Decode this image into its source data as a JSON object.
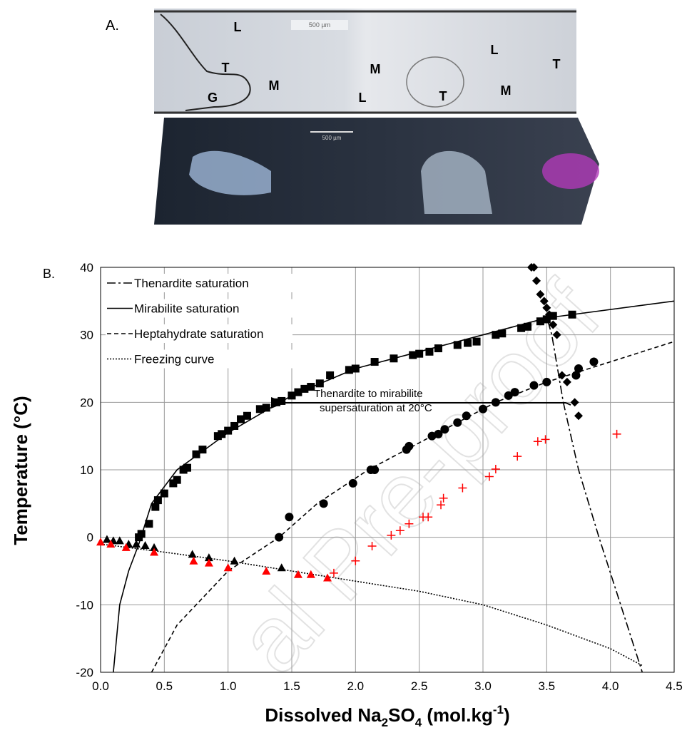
{
  "panel_a": {
    "label": "A.",
    "top_image": {
      "scale_bar": "500 µm",
      "labels": [
        "L",
        "L",
        "T",
        "M",
        "G",
        "M",
        "L",
        "T",
        "M",
        "T"
      ]
    },
    "bottom_image": {
      "scale_bar": "500 µm"
    }
  },
  "panel_b_label": "B.",
  "watermark": "al Pre-proof",
  "chart_data": {
    "type": "scatter",
    "y_label": "Temperature (°C)",
    "x_label": [
      "Dissolved Na",
      "2",
      "SO",
      "4",
      " (mol.kg",
      "-1",
      ")"
    ],
    "xlim": [
      0,
      4.5
    ],
    "ylim": [
      -20,
      40
    ],
    "xticks": [
      {
        "value": 0,
        "label": "0.0"
      },
      0.5,
      {
        "value": 1,
        "label": "1.0"
      },
      1.5,
      {
        "value": 2,
        "label": "2.0"
      },
      2.5,
      {
        "value": 3,
        "label": "3.0"
      },
      3.5,
      {
        "value": 4,
        "label": "4.0"
      },
      4.5
    ],
    "yticks": [
      -20,
      -10,
      0,
      10,
      20,
      30,
      40
    ],
    "grid": true,
    "annotation": [
      "Thenardite to mirabilite",
      "supersaturation at 20°C"
    ],
    "series": [
      {
        "name": "Thenardite saturation",
        "color": "#000",
        "style": "dash-dot",
        "x": [
          3.51,
          3.54,
          3.63,
          3.75,
          3.91,
          4.08,
          4.25
        ],
        "values": [
          32,
          30,
          20,
          10,
          0,
          -10,
          -20
        ]
      },
      {
        "name": "Mirabilite saturation",
        "color": "#000",
        "style": "solid",
        "x": [
          0.1,
          0.15,
          0.22,
          0.3,
          0.4,
          0.6,
          1.0,
          1.5,
          2.0,
          2.5,
          3.0,
          3.5,
          4.5
        ],
        "values": [
          -20,
          -10,
          -5,
          -1,
          5,
          10,
          15.5,
          21,
          25,
          27.5,
          30,
          32.5,
          35
        ]
      },
      {
        "name": "Heptahydrate saturation",
        "color": "#000",
        "style": "dashed",
        "x": [
          0.4,
          0.6,
          0.75,
          1.0,
          1.4,
          1.7,
          2.1,
          2.6,
          3.1,
          3.5,
          4.0,
          4.5
        ],
        "values": [
          -20,
          -13,
          -10,
          -5,
          0,
          5,
          10,
          15,
          20,
          23,
          26,
          29
        ]
      },
      {
        "name": "Freezing curve",
        "color": "#000",
        "style": "dotted",
        "x": [
          0,
          0.5,
          1.0,
          1.5,
          2.0,
          2.5,
          3.0,
          3.5,
          4.0,
          4.25
        ],
        "values": [
          -1,
          -2.2,
          -3.5,
          -5,
          -6.5,
          -8,
          -10,
          -13,
          -16.5,
          -19
        ]
      },
      {
        "color": "#000",
        "marker": "square",
        "x": [
          0.3,
          0.32,
          0.38,
          0.43,
          0.45,
          0.5,
          0.57,
          0.6,
          0.65,
          0.68,
          0.75,
          0.8,
          0.92,
          0.95,
          1.0,
          1.05,
          1.1,
          1.15,
          1.25,
          1.3,
          1.38,
          1.42,
          1.5,
          1.55,
          1.6,
          1.65,
          1.72,
          1.8,
          1.95,
          2.0,
          2.15,
          2.3,
          2.45,
          2.5,
          2.58,
          2.65,
          2.8,
          2.88,
          2.95,
          3.1,
          3.15,
          3.3,
          3.35,
          3.45,
          3.5,
          3.55,
          3.7
        ],
        "values": [
          0,
          0.5,
          2,
          4.5,
          5.5,
          6.5,
          8,
          8.5,
          10,
          10.3,
          12.3,
          13,
          15,
          15.3,
          15.8,
          16.5,
          17.5,
          18,
          19,
          19.2,
          20,
          20.2,
          21,
          21.5,
          22,
          22.3,
          22.8,
          24,
          24.8,
          25,
          26,
          26.5,
          27,
          27.2,
          27.5,
          28,
          28.5,
          28.8,
          29,
          30,
          30.2,
          31,
          31.2,
          32,
          32.3,
          32.8,
          33
        ]
      },
      {
        "color": "#000",
        "marker": "diamond",
        "x": [
          3.38,
          3.4,
          3.42,
          3.45,
          3.48,
          3.5,
          3.52,
          3.55,
          3.58,
          3.62,
          3.66,
          3.72,
          3.75
        ],
        "values": [
          40,
          40,
          38,
          36,
          35,
          34,
          33,
          31.5,
          30,
          24,
          23,
          20,
          18
        ]
      },
      {
        "color": "#000",
        "marker": "circle",
        "x": [
          1.4,
          1.48,
          1.75,
          1.98,
          2.12,
          2.15,
          2.4,
          2.42,
          2.6,
          2.65,
          2.7,
          2.8,
          2.87,
          3.0,
          3.1,
          3.2,
          3.25,
          3.4,
          3.5,
          3.73,
          3.75,
          3.87
        ],
        "values": [
          0,
          3,
          5,
          8,
          10,
          10,
          13,
          13.5,
          15,
          15.3,
          16,
          17,
          18,
          19,
          20,
          21,
          21.5,
          22.5,
          23,
          24,
          25,
          26
        ]
      },
      {
        "color": "#000",
        "marker": "triangle",
        "x": [
          0.05,
          0.1,
          0.15,
          0.22,
          0.28,
          0.35,
          0.42,
          0.72,
          0.85,
          1.05,
          1.42
        ],
        "values": [
          -0.3,
          -0.5,
          -0.5,
          -1,
          -1,
          -1.2,
          -1.5,
          -2.5,
          -3,
          -3.5,
          -4.5
        ]
      },
      {
        "color": "#ff0000",
        "marker": "triangle",
        "x": [
          0.0,
          0.08,
          0.2,
          0.42,
          0.73,
          0.85,
          1.0,
          1.3,
          1.55,
          1.65,
          1.78
        ],
        "values": [
          -0.7,
          -1,
          -1.5,
          -2.2,
          -3.5,
          -3.8,
          -4.5,
          -5,
          -5.5,
          -5.5,
          -6
        ]
      },
      {
        "color": "#ff0000",
        "marker": "plus",
        "x": [
          1.83,
          2.0,
          2.13,
          2.28,
          2.35,
          2.42,
          2.53,
          2.57,
          2.67,
          2.69,
          2.84,
          3.05,
          3.1,
          3.27,
          3.43,
          3.49,
          4.05
        ],
        "values": [
          -5.3,
          -3.5,
          -1.3,
          0.3,
          1,
          2,
          3,
          3,
          4.8,
          5.8,
          7.3,
          9,
          10.1,
          12,
          14.2,
          14.5,
          15.3
        ]
      }
    ]
  }
}
